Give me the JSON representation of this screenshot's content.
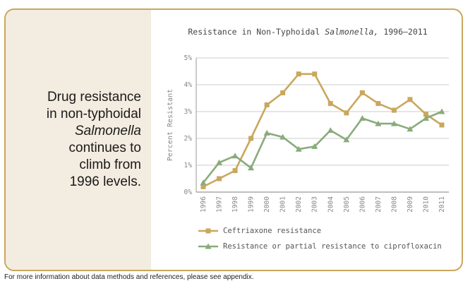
{
  "headline": {
    "line1": "Drug resistance",
    "line2": "in non-typhoidal",
    "line3": "Salmonella",
    "line4": "continues to",
    "line5": "climb from",
    "line6": "1996 levels."
  },
  "footer": "For more information about data methods and references, please see appendix.",
  "chart_data": {
    "type": "line",
    "title_prefix": "Resistance in Non-Typhoidal ",
    "title_italic": "Salmonella,",
    "title_suffix": " 1996–2011",
    "ylabel": "Percent Resistant",
    "ylim": [
      0,
      5
    ],
    "yticks": [
      "0%",
      "1%",
      "2%",
      "3%",
      "4%",
      "5%"
    ],
    "grid": true,
    "legend_position": "bottom",
    "x": [
      "1996",
      "1997",
      "1998",
      "1999",
      "2000",
      "2001",
      "2002",
      "2003",
      "2004",
      "2005",
      "2006",
      "2007",
      "2008",
      "2009",
      "2010",
      "2011"
    ],
    "series": [
      {
        "name": "Ceftriaxone resistance",
        "color": "#c9a75c",
        "marker": "square",
        "values": [
          0.2,
          0.5,
          0.8,
          2.0,
          3.25,
          3.7,
          4.4,
          4.4,
          3.3,
          2.95,
          3.7,
          3.3,
          3.05,
          3.45,
          2.9,
          2.5
        ]
      },
      {
        "name": "Resistance or partial resistance to ciprofloxacin",
        "color": "#8aab7c",
        "marker": "triangle",
        "values": [
          0.35,
          1.1,
          1.35,
          0.9,
          2.2,
          2.05,
          1.6,
          1.7,
          2.3,
          1.95,
          2.75,
          2.55,
          2.55,
          2.35,
          2.75,
          3.0
        ]
      }
    ]
  }
}
